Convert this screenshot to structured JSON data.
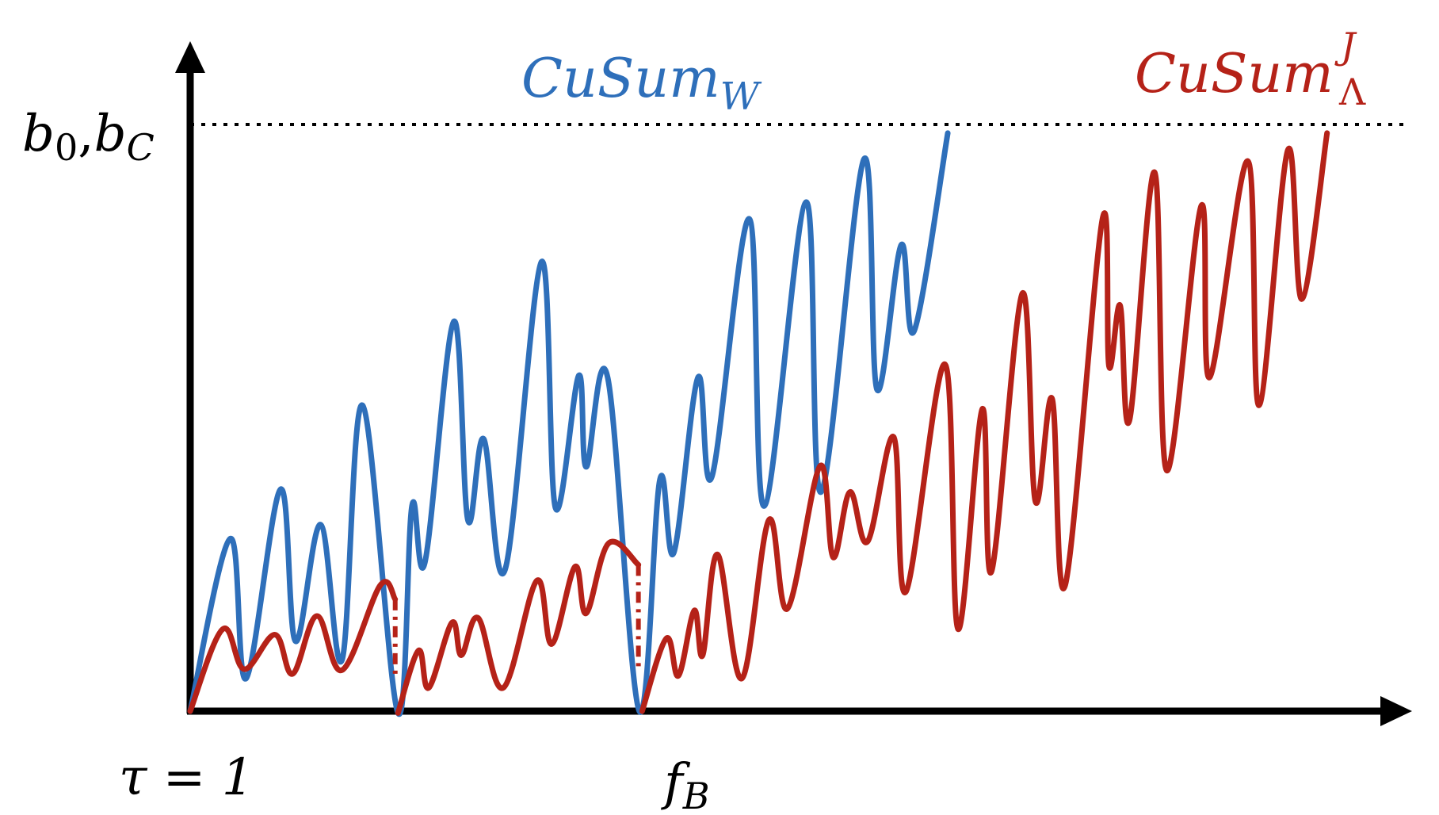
{
  "chart_data": {
    "type": "line",
    "title": "",
    "threshold": {
      "label_main": "b",
      "label_sub": "0",
      "label_sep": ",",
      "label_main2": "b",
      "label_sub2": "C",
      "style": "dotted"
    },
    "x_markers": [
      {
        "label_main": "τ = 1"
      },
      {
        "label_main": "f",
        "label_sub": "B"
      }
    ],
    "series": [
      {
        "name_main": "CuSum",
        "name_sub": "W",
        "name_sup": "",
        "color": "#2e6fba",
        "points": [
          [
            205,
            760
          ],
          [
            248,
            575
          ],
          [
            265,
            725
          ],
          [
            302,
            522
          ],
          [
            318,
            685
          ],
          [
            345,
            560
          ],
          [
            368,
            705
          ],
          [
            390,
            432
          ],
          [
            428,
            762
          ],
          [
            443,
            540
          ],
          [
            457,
            600
          ],
          [
            488,
            342
          ],
          [
            503,
            555
          ],
          [
            520,
            468
          ],
          [
            543,
            608
          ],
          [
            582,
            278
          ],
          [
            597,
            542
          ],
          [
            622,
            400
          ],
          [
            630,
            498
          ],
          [
            653,
            402
          ],
          [
            687,
            760
          ],
          [
            709,
            512
          ],
          [
            724,
            590
          ],
          [
            750,
            402
          ],
          [
            765,
            508
          ],
          [
            805,
            232
          ],
          [
            821,
            540
          ],
          [
            866,
            214
          ],
          [
            882,
            525
          ],
          [
            928,
            168
          ],
          [
            942,
            415
          ],
          [
            968,
            260
          ],
          [
            982,
            352
          ],
          [
            1018,
            140
          ]
        ]
      },
      {
        "name_main": "CuSum",
        "name_sub": "Λ",
        "name_sup": "J",
        "color": "#b52218",
        "points": [
          [
            205,
            760
          ],
          [
            240,
            672
          ],
          [
            263,
            715
          ],
          [
            296,
            678
          ],
          [
            315,
            720
          ],
          [
            341,
            658
          ],
          [
            368,
            716
          ],
          [
            409,
            625
          ],
          [
            425,
            640
          ],
          [
            428,
            762
          ],
          [
            450,
            695
          ],
          [
            461,
            735
          ],
          [
            486,
            665
          ],
          [
            496,
            700
          ],
          [
            514,
            660
          ],
          [
            541,
            735
          ],
          [
            577,
            620
          ],
          [
            593,
            688
          ],
          [
            618,
            605
          ],
          [
            630,
            655
          ],
          [
            654,
            580
          ],
          [
            686,
            603
          ],
          [
            690,
            760
          ],
          [
            716,
            682
          ],
          [
            729,
            722
          ],
          [
            746,
            652
          ],
          [
            755,
            700
          ],
          [
            771,
            592
          ],
          [
            797,
            725
          ],
          [
            826,
            555
          ],
          [
            846,
            650
          ],
          [
            881,
            497
          ],
          [
            895,
            595
          ],
          [
            913,
            525
          ],
          [
            932,
            578
          ],
          [
            960,
            466
          ],
          [
            973,
            632
          ],
          [
            1015,
            388
          ],
          [
            1029,
            672
          ],
          [
            1055,
            436
          ],
          [
            1065,
            610
          ],
          [
            1098,
            312
          ],
          [
            1112,
            535
          ],
          [
            1130,
            425
          ],
          [
            1144,
            625
          ],
          [
            1184,
            232
          ],
          [
            1191,
            390
          ],
          [
            1203,
            325
          ],
          [
            1213,
            448
          ],
          [
            1240,
            182
          ],
          [
            1253,
            502
          ],
          [
            1290,
            218
          ],
          [
            1299,
            402
          ],
          [
            1340,
            170
          ],
          [
            1352,
            432
          ],
          [
            1383,
            158
          ],
          [
            1398,
            318
          ],
          [
            1425,
            140
          ]
        ]
      }
    ],
    "dropouts": [
      {
        "x": 425,
        "y_from": 640,
        "y_to": 720
      },
      {
        "x": 686,
        "y_from": 603,
        "y_to": 718
      }
    ],
    "grid": false,
    "legend": "inline-labels"
  }
}
